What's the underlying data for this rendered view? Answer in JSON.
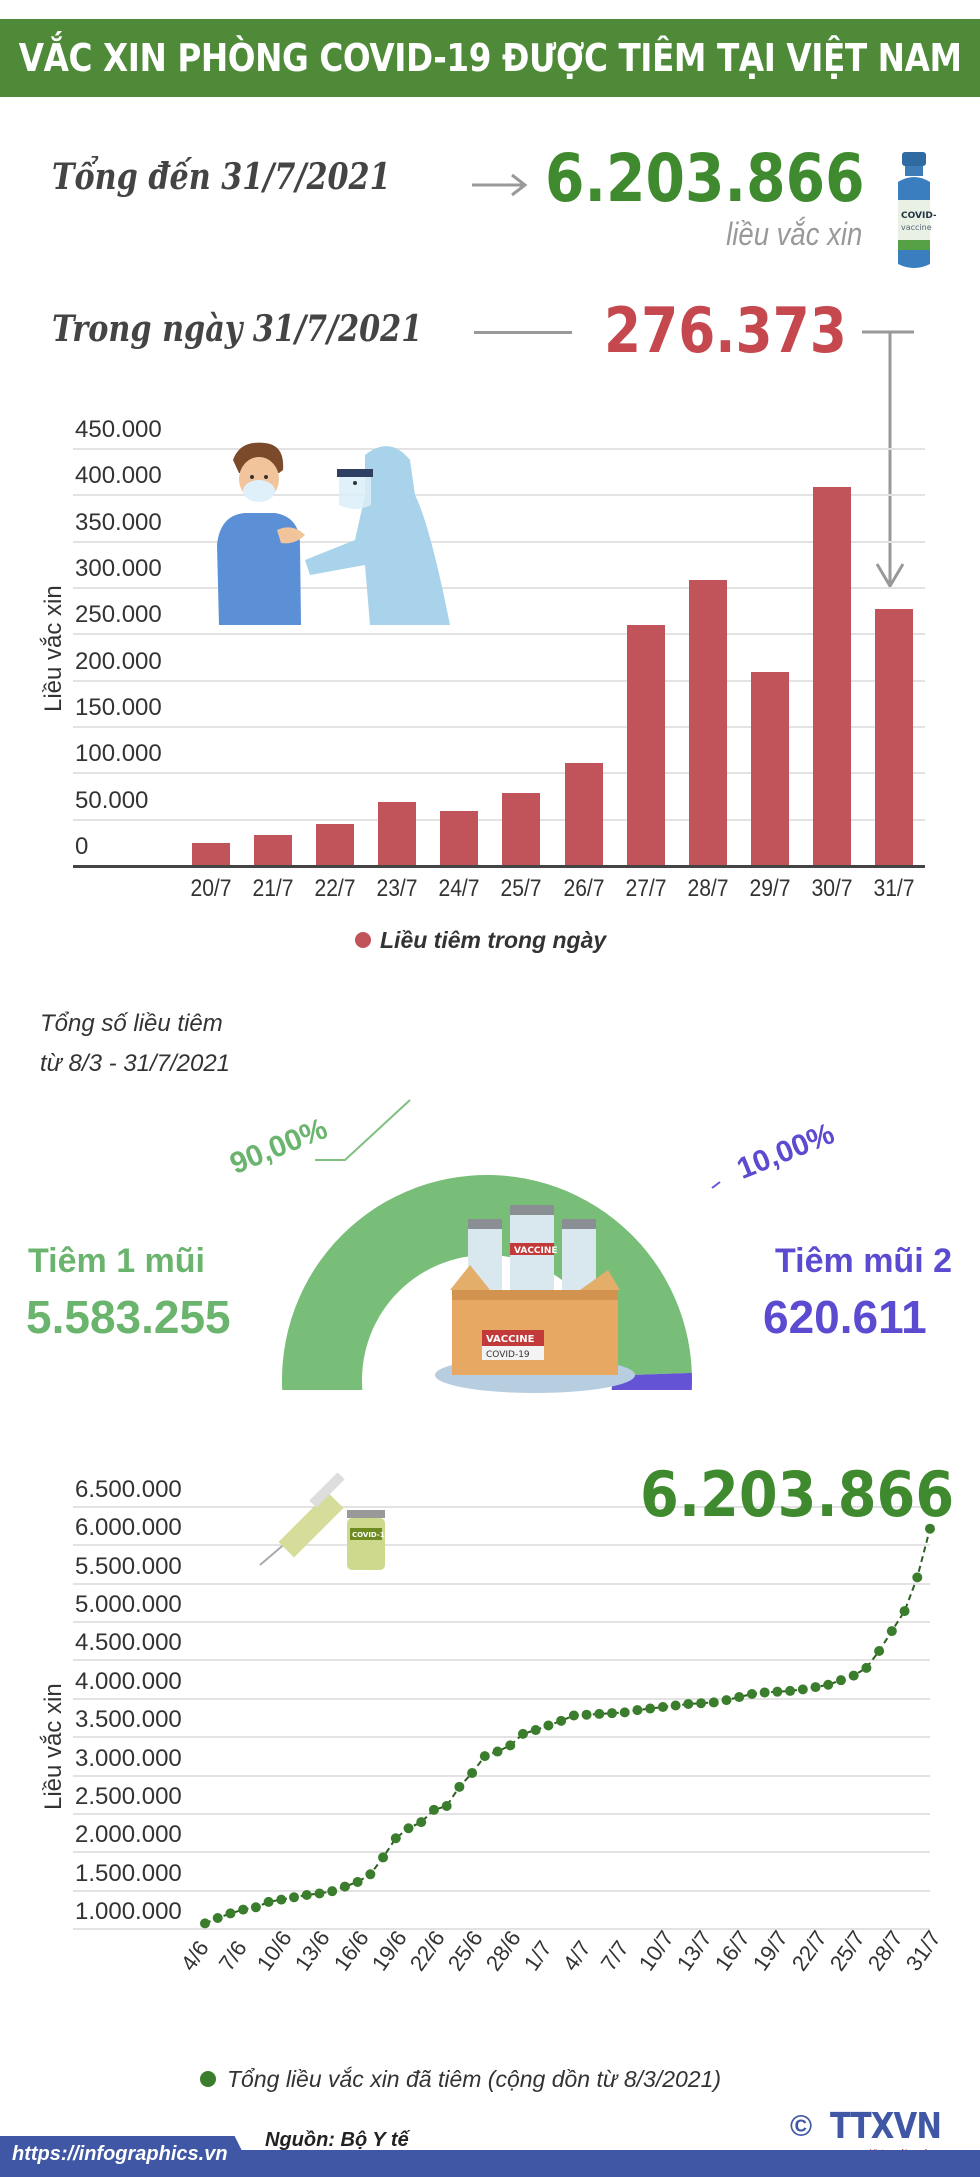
{
  "header": {
    "title": "VẮC XIN PHÒNG COVID-19 ĐƯỢC TIÊM TẠI VIỆT NAM"
  },
  "summary": {
    "total_label": "Tổng đến 31/7/2021",
    "total_value": "6.203.866",
    "total_unit": "liều vắc xin",
    "daily_label": "Trong ngày 31/7/2021",
    "daily_value": "276.373",
    "vial_label": "COVID-19 vaccine"
  },
  "colors": {
    "banner": "#4e8a38",
    "total_green": "#3f8a2f",
    "bar_red": "#c1535a",
    "dose1_green": "#6bb46e",
    "dose2_purple": "#5b4bd1",
    "line_green": "#3a7d2c",
    "footer_blue": "#3f57a4"
  },
  "daily_chart": {
    "ylabel": "Liều vắc xin",
    "yticks": [
      "450.000",
      "400.000",
      "350.000",
      "300.000",
      "250.000",
      "200.000",
      "150.000",
      "100.000",
      "50.000",
      "0"
    ],
    "legend": "Liều tiêm trong ngày"
  },
  "doses": {
    "caption_line1": "Tổng số liều tiêm",
    "caption_line2": "từ 8/3 - 31/7/2021",
    "dose1_label": "Tiêm 1 mũi",
    "dose1_value": "5.583.255",
    "dose1_pct": "90,00%",
    "dose2_label": "Tiêm mũi 2",
    "dose2_value": "620.611",
    "dose2_pct": "10,00%",
    "box_label1": "VACCINE",
    "box_label2": "COVID-19"
  },
  "cumulative_chart": {
    "ylabel": "Liều vắc xin",
    "yticks": [
      "6.500.000",
      "6.000.000",
      "5.500.000",
      "5.000.000",
      "4.500.000",
      "4.000.000",
      "3.500.000",
      "3.000.000",
      "2.500.000",
      "2.000.000",
      "1.500.000",
      "1.000.000"
    ],
    "xticks": [
      "4/6",
      "7/6",
      "10/6",
      "13/6",
      "16/6",
      "19/6",
      "22/6",
      "25/6",
      "28/6",
      "1/7",
      "4/7",
      "7/7",
      "10/7",
      "13/7",
      "16/7",
      "19/7",
      "22/7",
      "25/7",
      "28/7",
      "31/7"
    ],
    "callout": "6.203.866",
    "legend": "Tổng liều vắc xin đã tiêm (cộng dồn từ 8/3/2021)"
  },
  "footer": {
    "source": "Nguồn: Bộ Y tế",
    "url": "https://infographics.vn",
    "copyright": "©",
    "logo": "TTXVN",
    "logo_sub": "Vietnam News Agency"
  },
  "chart_data": [
    {
      "type": "bar",
      "title": "Liều tiêm trong ngày",
      "xlabel": "",
      "ylabel": "Liều vắc xin",
      "categories": [
        "20/7",
        "21/7",
        "22/7",
        "23/7",
        "24/7",
        "25/7",
        "26/7",
        "27/7",
        "28/7",
        "29/7",
        "30/7",
        "31/7"
      ],
      "values": [
        24000,
        32000,
        44000,
        68000,
        58000,
        78000,
        110000,
        259000,
        308000,
        208000,
        408000,
        276373
      ],
      "ylim": [
        0,
        450000
      ],
      "yticks_step": 50000,
      "grid": true,
      "legend_position": "bottom",
      "annotations": [
        "Trong ngày 31/7/2021: 276.373"
      ]
    },
    {
      "type": "pie",
      "subtype": "half-donut",
      "title": "Tổng số liều tiêm từ 8/3 - 31/7/2021",
      "categories": [
        "Tiêm 1 mũi",
        "Tiêm mũi 2"
      ],
      "values": [
        5583255,
        620611
      ],
      "percentages": [
        90.0,
        10.0
      ]
    },
    {
      "type": "line",
      "title": "Tổng liều vắc xin đã tiêm (cộng dồn từ 8/3/2021)",
      "xlabel": "",
      "ylabel": "Liều vắc xin",
      "x": [
        "4/6",
        "5/6",
        "6/6",
        "7/6",
        "8/6",
        "9/6",
        "10/6",
        "11/6",
        "12/6",
        "13/6",
        "14/6",
        "15/6",
        "16/6",
        "17/6",
        "18/6",
        "19/6",
        "20/6",
        "21/6",
        "22/6",
        "23/6",
        "24/6",
        "25/6",
        "26/6",
        "27/6",
        "28/6",
        "29/6",
        "30/6",
        "1/7",
        "2/7",
        "3/7",
        "4/7",
        "5/7",
        "6/7",
        "7/7",
        "8/7",
        "9/7",
        "10/7",
        "11/7",
        "12/7",
        "13/7",
        "14/7",
        "15/7",
        "16/7",
        "17/7",
        "18/7",
        "19/7",
        "20/7",
        "21/7",
        "22/7",
        "23/7",
        "24/7",
        "25/7",
        "26/7",
        "27/7",
        "28/7",
        "29/7",
        "30/7",
        "31/7"
      ],
      "series": [
        {
          "name": "Tổng liều vắc xin đã tiêm",
          "values": [
            1060000,
            1130000,
            1190000,
            1240000,
            1270000,
            1340000,
            1370000,
            1400000,
            1430000,
            1450000,
            1480000,
            1540000,
            1600000,
            1700000,
            1920000,
            2170000,
            2300000,
            2380000,
            2540000,
            2590000,
            2840000,
            3020000,
            3240000,
            3300000,
            3380000,
            3530000,
            3580000,
            3640000,
            3700000,
            3770000,
            3780000,
            3790000,
            3800000,
            3810000,
            3840000,
            3860000,
            3880000,
            3900000,
            3920000,
            3930000,
            3940000,
            3970000,
            4010000,
            4050000,
            4070000,
            4080000,
            4090000,
            4110000,
            4140000,
            4170000,
            4230000,
            4290000,
            4390000,
            4610000,
            4870000,
            5130000,
            5570000,
            6203866
          ]
        }
      ],
      "ylim": [
        1000000,
        6500000
      ],
      "yticks_step": 500000,
      "grid": true,
      "legend_position": "bottom",
      "annotations": [
        "6.203.866"
      ]
    }
  ]
}
